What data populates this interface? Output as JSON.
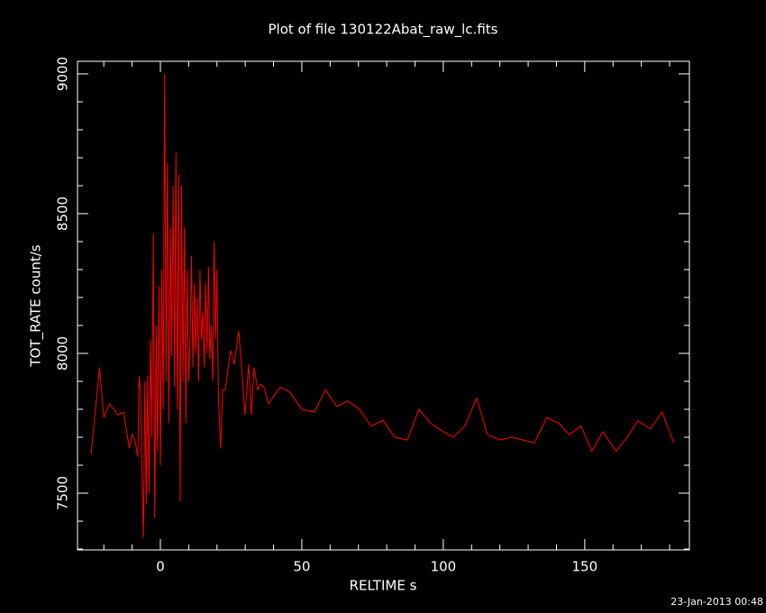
{
  "chart_data": {
    "type": "line",
    "title": "Plot of file 130122Abat_raw_lc.fits",
    "x_label": "RELTIME  s",
    "y_label": "TOT_RATE  count/s",
    "footer": "23-Jan-2013 00:48",
    "color": "#ff0000",
    "xlim": [
      -29.3,
      187
    ],
    "ylim": [
      7297,
      9045
    ],
    "xticks": [
      0,
      50,
      100,
      150
    ],
    "yticks": [
      7500,
      8000,
      8500,
      9000
    ],
    "xminorticks": [
      -20,
      -10,
      10,
      20,
      30,
      40,
      60,
      70,
      80,
      90,
      110,
      120,
      130,
      140,
      160,
      170,
      180
    ],
    "yminorticks": [
      7300,
      7400,
      7600,
      7700,
      7800,
      7900,
      8100,
      8200,
      8300,
      8400,
      8600,
      8700,
      8800,
      8900
    ],
    "x": [
      -24.5,
      -21.5,
      -20,
      -18,
      -15,
      -13,
      -11,
      -10,
      -9,
      -8,
      -7.5,
      -7,
      -6.5,
      -6,
      -5.5,
      -5,
      -4.5,
      -4,
      -3.5,
      -3,
      -2.5,
      -2,
      -1.5,
      -1,
      -0.5,
      0,
      0.5,
      1,
      1.5,
      2,
      2.5,
      3,
      3.5,
      4,
      4.5,
      5,
      5.5,
      6,
      6.5,
      7,
      7.5,
      8,
      8.5,
      9,
      9.5,
      10,
      10.5,
      11,
      11.5,
      12,
      12.5,
      13,
      13.5,
      14,
      14.5,
      15,
      15.5,
      16,
      16.5,
      17,
      17.5,
      18,
      18.5,
      19,
      19.5,
      20,
      20.5,
      21.3,
      22,
      22.9,
      24.8,
      26.1,
      27.7,
      28.7,
      29.9,
      31.2,
      32.2,
      33.1,
      34.4,
      35.4,
      36.6,
      38.2,
      42.4,
      45.9,
      50,
      54.5,
      58.3,
      62.4,
      66.2,
      70.4,
      74.5,
      78.7,
      82.8,
      87.3,
      91.4,
      95.5,
      100,
      103.5,
      107.6,
      111.8,
      115.6,
      120.1,
      124.2,
      128.3,
      132.2,
      136.6,
      140.8,
      144.6,
      148.7,
      152.5,
      156.4,
      161.1,
      165,
      168.8,
      173.2,
      177.4,
      181.5
    ],
    "values": [
      7640,
      7950,
      7770,
      7820,
      7780,
      7790,
      7660,
      7710,
      7690,
      7630,
      7920,
      7860,
      7560,
      7340,
      7900,
      7460,
      7920,
      7500,
      8050,
      7700,
      8430,
      7410,
      8100,
      7650,
      8240,
      7600,
      8300,
      7800,
      9000,
      7900,
      8680,
      7750,
      8450,
      7990,
      8600,
      7880,
      8720,
      7800,
      8640,
      7470,
      8600,
      7900,
      8450,
      7750,
      8300,
      7900,
      8050,
      8350,
      7950,
      8250,
      8000,
      8200,
      7900,
      8300,
      8050,
      8150,
      7950,
      8250,
      8000,
      8310,
      7980,
      8100,
      7900,
      8400,
      8050,
      8300,
      7850,
      7660,
      7870,
      7870,
      8010,
      7960,
      8080,
      7950,
      7780,
      7960,
      7780,
      7950,
      7870,
      7890,
      7880,
      7820,
      7880,
      7860,
      7800,
      7790,
      7870,
      7810,
      7830,
      7800,
      7740,
      7760,
      7700,
      7690,
      7800,
      7750,
      7720,
      7700,
      7740,
      7840,
      7710,
      7690,
      7700,
      7690,
      7680,
      7770,
      7750,
      7710,
      7740,
      7650,
      7720,
      7650,
      7700,
      7760,
      7730,
      7790,
      7680
    ]
  }
}
